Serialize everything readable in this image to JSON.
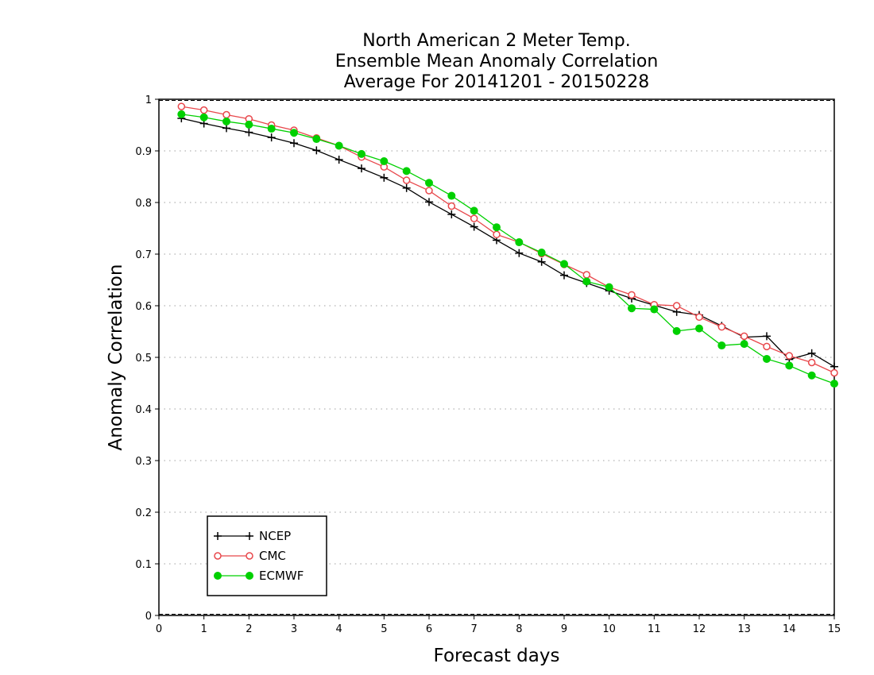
{
  "chart_data": {
    "type": "line",
    "title_lines": [
      "North American 2 Meter Temp.",
      "Ensemble Mean Anomaly Correlation",
      "Average For 20141201 - 20150228"
    ],
    "xlabel": "Forecast days",
    "ylabel": "Anomaly Correlation",
    "xlim": [
      0,
      15
    ],
    "ylim": [
      0,
      1
    ],
    "x_ticks": [
      "0",
      "1",
      "2",
      "3",
      "4",
      "5",
      "6",
      "7",
      "8",
      "9",
      "10",
      "11",
      "12",
      "13",
      "14",
      "15"
    ],
    "y_ticks": [
      "0",
      "0.1",
      "0.2",
      "0.3",
      "0.4",
      "0.5",
      "0.6",
      "0.7",
      "0.8",
      "0.9",
      "1"
    ],
    "grid": "horizontal dotted",
    "legend_position": "bottom-left",
    "x": [
      0.5,
      1,
      1.5,
      2,
      2.5,
      3,
      3.5,
      4,
      4.5,
      5,
      5.5,
      6,
      6.5,
      7,
      7.5,
      8,
      8.5,
      9,
      9.5,
      10,
      10.5,
      11,
      11.5,
      12,
      12.5,
      13,
      13.5,
      14,
      14.5,
      15
    ],
    "series": [
      {
        "name": "NCEP",
        "color": "#000000",
        "marker": "plus",
        "values": [
          0.963,
          0.953,
          0.944,
          0.936,
          0.926,
          0.915,
          0.901,
          0.883,
          0.866,
          0.848,
          0.828,
          0.801,
          0.777,
          0.753,
          0.727,
          0.702,
          0.685,
          0.659,
          0.644,
          0.629,
          0.614,
          0.601,
          0.588,
          0.582,
          0.561,
          0.539,
          0.541,
          0.496,
          0.508,
          0.482
        ]
      },
      {
        "name": "CMC",
        "color": "#e8474b",
        "marker": "open-circle",
        "values": [
          0.986,
          0.979,
          0.97,
          0.962,
          0.95,
          0.94,
          0.925,
          0.91,
          0.888,
          0.869,
          0.843,
          0.823,
          0.793,
          0.769,
          0.738,
          0.723,
          0.701,
          0.68,
          0.66,
          0.636,
          0.621,
          0.602,
          0.6,
          0.578,
          0.559,
          0.541,
          0.521,
          0.503,
          0.49,
          0.47
        ]
      },
      {
        "name": "ECMWF",
        "color": "#00d000",
        "marker": "filled-circle",
        "values": [
          0.971,
          0.965,
          0.957,
          0.951,
          0.943,
          0.935,
          0.923,
          0.91,
          0.894,
          0.88,
          0.861,
          0.838,
          0.813,
          0.784,
          0.752,
          0.723,
          0.703,
          0.681,
          0.647,
          0.636,
          0.595,
          0.593,
          0.551,
          0.556,
          0.523,
          0.526,
          0.497,
          0.484,
          0.465,
          0.449
        ]
      }
    ]
  }
}
